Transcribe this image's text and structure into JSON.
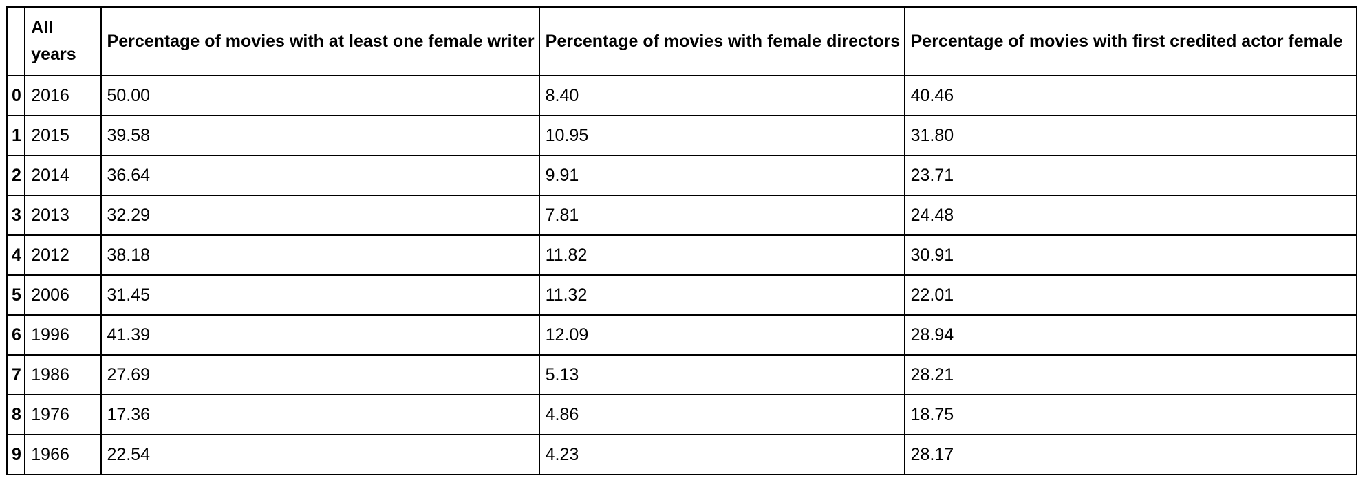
{
  "chart_data": {
    "type": "table",
    "columns": [
      "",
      "All years",
      "Percentage of movies with at least one female writer",
      "Percentage of movies with female directors",
      "Percentage of movies with first credited actor female"
    ],
    "rows": [
      {
        "index": "0",
        "year": "2016",
        "writer": "50.00",
        "director": "8.40",
        "actor": "40.46"
      },
      {
        "index": "1",
        "year": "2015",
        "writer": "39.58",
        "director": "10.95",
        "actor": "31.80"
      },
      {
        "index": "2",
        "year": "2014",
        "writer": "36.64",
        "director": "9.91",
        "actor": "23.71"
      },
      {
        "index": "3",
        "year": "2013",
        "writer": "32.29",
        "director": "7.81",
        "actor": "24.48"
      },
      {
        "index": "4",
        "year": "2012",
        "writer": "38.18",
        "director": "11.82",
        "actor": "30.91"
      },
      {
        "index": "5",
        "year": "2006",
        "writer": "31.45",
        "director": "11.32",
        "actor": "22.01"
      },
      {
        "index": "6",
        "year": "1996",
        "writer": "41.39",
        "director": "12.09",
        "actor": "28.94"
      },
      {
        "index": "7",
        "year": "1986",
        "writer": "27.69",
        "director": "5.13",
        "actor": "28.21"
      },
      {
        "index": "8",
        "year": "1976",
        "writer": "17.36",
        "director": "4.86",
        "actor": "18.75"
      },
      {
        "index": "9",
        "year": "1966",
        "writer": "22.54",
        "director": "4.23",
        "actor": "28.17"
      }
    ]
  }
}
